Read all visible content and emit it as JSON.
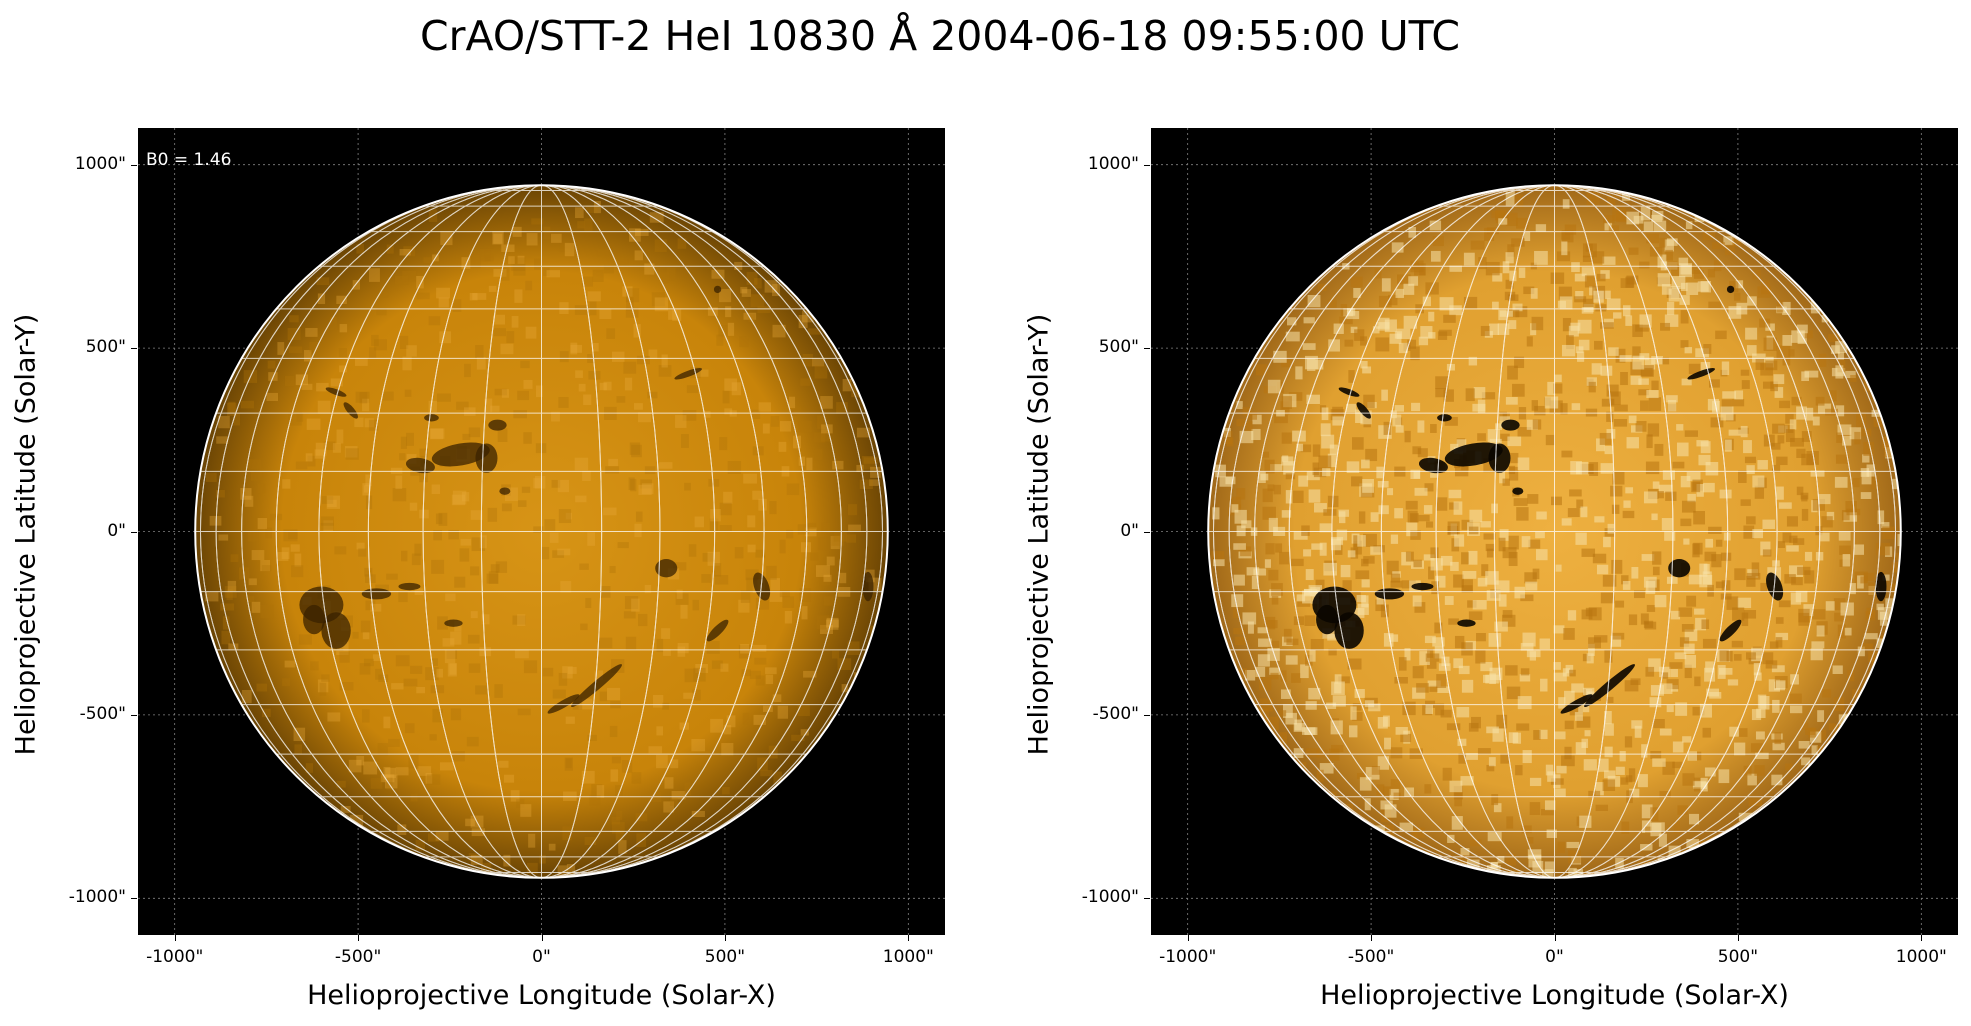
{
  "figure": {
    "title": "CrAO/STT-2 HeI 10830 Å 2004-06-18 09:55:00 UTC"
  },
  "panels": [
    {
      "annotation": "B0 = 1.46",
      "xlabel": "Helioprojective Longitude (Solar-X)",
      "ylabel": "Helioprojective Latitude (Solar-Y)",
      "image": "solar disk (orange), grid overlay",
      "colors": {
        "disk": "#c8840a",
        "limb": "#6a4404",
        "background": "#000000"
      }
    },
    {
      "annotation": "",
      "xlabel": "Helioprojective Longitude (Solar-X)",
      "ylabel": "Helioprojective Latitude (Solar-Y)",
      "image": "solar disk enhanced contrast, grid overlay",
      "colors": {
        "disk": "#e0a030",
        "limb": "#a06818",
        "background": "#000000"
      }
    }
  ],
  "axes": {
    "x_ticks": [
      "-1000\"",
      "-500\"",
      "0\"",
      "500\"",
      "1000\""
    ],
    "y_ticks": [
      "1000\"",
      "500\"",
      "0\"",
      "-500\"",
      "-1000\""
    ],
    "x_tick_values": [
      -1000,
      -500,
      0,
      500,
      1000
    ],
    "y_tick_values": [
      1000,
      500,
      0,
      -500,
      -1000
    ],
    "xlim": [
      -1100,
      1100
    ],
    "ylim": [
      -1100,
      1100
    ],
    "solar_radius_arcsec": 944,
    "grid": true
  }
}
